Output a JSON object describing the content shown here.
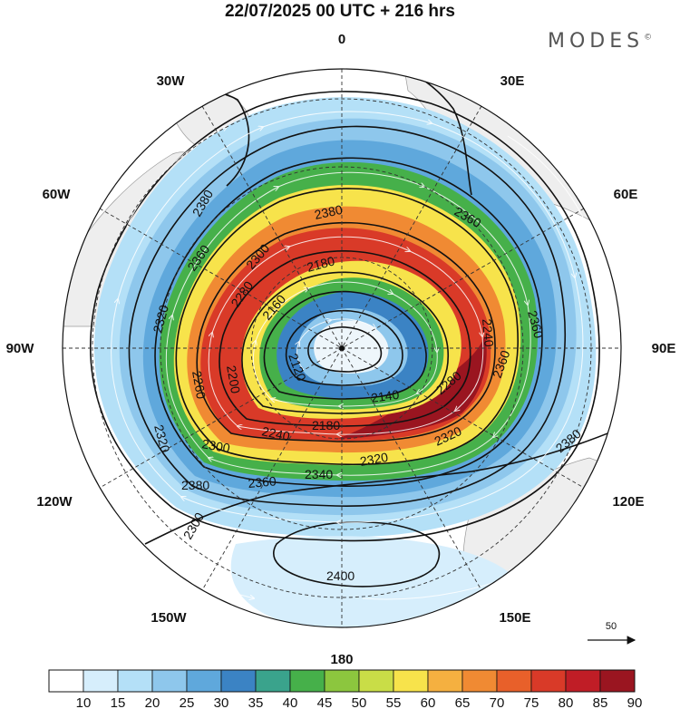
{
  "title": "22/07/2025  00 UTC  + 216 hrs",
  "brand": {
    "name": "MODES",
    "mark": "©"
  },
  "map": {
    "projection": "polar stereographic",
    "meridian_labels": [
      {
        "key": "m0",
        "text": "0"
      },
      {
        "key": "m30e",
        "text": "30E"
      },
      {
        "key": "m60e",
        "text": "60E"
      },
      {
        "key": "m90e",
        "text": "90E"
      },
      {
        "key": "m120e",
        "text": "120E"
      },
      {
        "key": "m150e",
        "text": "150E"
      },
      {
        "key": "m180",
        "text": "180"
      },
      {
        "key": "m150w",
        "text": "150W"
      },
      {
        "key": "m120w",
        "text": "120W"
      },
      {
        "key": "m90w",
        "text": "90W"
      },
      {
        "key": "m60w",
        "text": "60W"
      },
      {
        "key": "m30w",
        "text": "30W"
      }
    ],
    "contour_labels": [
      {
        "key": "c2380a",
        "text": "2380"
      },
      {
        "key": "c2360a",
        "text": "2360"
      },
      {
        "key": "c2380b",
        "text": "2380"
      },
      {
        "key": "c2360b",
        "text": "2360"
      },
      {
        "key": "c2300a",
        "text": "2300"
      },
      {
        "key": "c2180a",
        "text": "2180"
      },
      {
        "key": "c2160a",
        "text": "2160"
      },
      {
        "key": "c2120",
        "text": "2120"
      },
      {
        "key": "c2140",
        "text": "2140"
      },
      {
        "key": "c2180b",
        "text": "2180"
      },
      {
        "key": "c2240a",
        "text": "2240"
      },
      {
        "key": "c2300b",
        "text": "2300"
      },
      {
        "key": "c2320a",
        "text": "2320"
      },
      {
        "key": "c2340",
        "text": "2340"
      },
      {
        "key": "c2360c",
        "text": "2360"
      },
      {
        "key": "c2380c",
        "text": "2380"
      },
      {
        "key": "c2320b",
        "text": "2320"
      },
      {
        "key": "c2200",
        "text": "2200"
      },
      {
        "key": "c2260",
        "text": "2260"
      },
      {
        "key": "c2280",
        "text": "2280"
      },
      {
        "key": "c2320c",
        "text": "2320"
      },
      {
        "key": "c2360d",
        "text": "2360"
      },
      {
        "key": "c2380d",
        "text": "2380"
      },
      {
        "key": "c2400",
        "text": "2400"
      },
      {
        "key": "c2240b",
        "text": "2240"
      },
      {
        "key": "c2280b",
        "text": "2280"
      },
      {
        "key": "c2320d",
        "text": "2320"
      },
      {
        "key": "c2360e",
        "text": "2360"
      },
      {
        "key": "c2300c",
        "text": "2300"
      }
    ],
    "reference_vector": "50"
  },
  "colorbar": {
    "labels": [
      "10",
      "15",
      "20",
      "25",
      "30",
      "35",
      "40",
      "45",
      "50",
      "55",
      "60",
      "65",
      "70",
      "75",
      "80",
      "85",
      "90"
    ],
    "colors": [
      "#ffffff",
      "#d6eefc",
      "#b4e0f7",
      "#8ec7ec",
      "#5fa8dc",
      "#3b83c4",
      "#3aa38c",
      "#46b04a",
      "#8cc63e",
      "#c9dd47",
      "#f7e34b",
      "#f5b040",
      "#f08a33",
      "#e8602a",
      "#d93a28",
      "#c01d26",
      "#9a1520"
    ]
  }
}
